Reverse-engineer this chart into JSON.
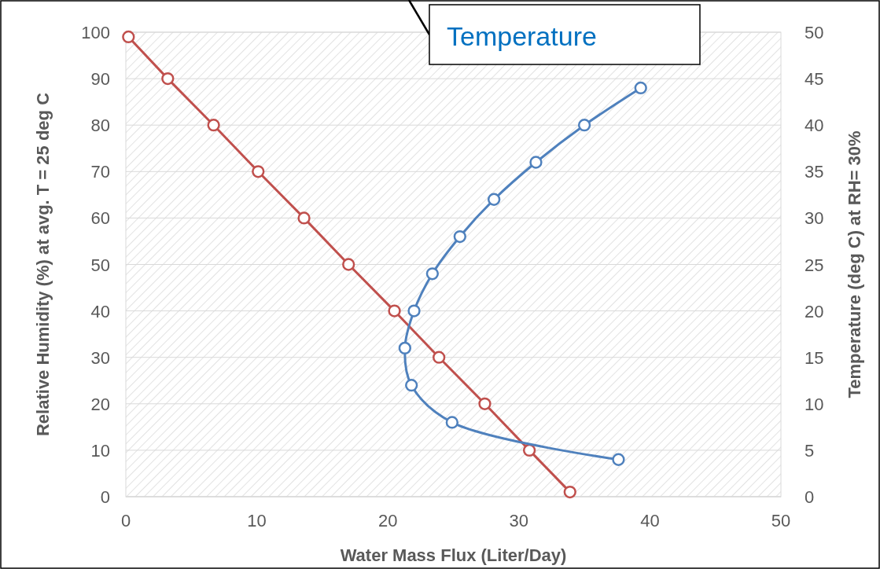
{
  "chart_data": {
    "type": "line",
    "xlabel": "Water Mass Flux (Liter/Day)",
    "ylabel": "Relative Humidity (%) at avg. T = 25 deg C",
    "y2label": "Temperature (deg C) at RH= 30%",
    "xlim": [
      0,
      50
    ],
    "xticks": [
      0,
      10,
      20,
      30,
      40,
      50
    ],
    "ylim": [
      0,
      100
    ],
    "yticks": [
      0,
      10,
      20,
      30,
      40,
      50,
      60,
      70,
      80,
      90,
      100
    ],
    "y2lim": [
      0,
      50
    ],
    "y2ticks": [
      0,
      5,
      10,
      15,
      20,
      25,
      30,
      35,
      40,
      45,
      50
    ],
    "grid": "y",
    "marker": "circle",
    "series": [
      {
        "color": "#c0504d",
        "x": [
          0.2,
          3.2,
          6.7,
          10.1,
          13.6,
          17.0,
          20.5,
          23.9,
          27.4,
          30.8,
          33.9
        ],
        "values": [
          99,
          90,
          80,
          70,
          60,
          50,
          40,
          30,
          20,
          10,
          1
        ]
      },
      {
        "name": "Temperature",
        "color": "#4f81bd",
        "axis": "y2",
        "x": [
          37.6,
          24.9,
          21.8,
          21.3,
          22.0,
          23.4,
          25.5,
          28.1,
          31.3,
          35.0,
          39.3
        ],
        "values": [
          4,
          8,
          12,
          16,
          20,
          24,
          28,
          32,
          36,
          40,
          44
        ]
      }
    ]
  }
}
